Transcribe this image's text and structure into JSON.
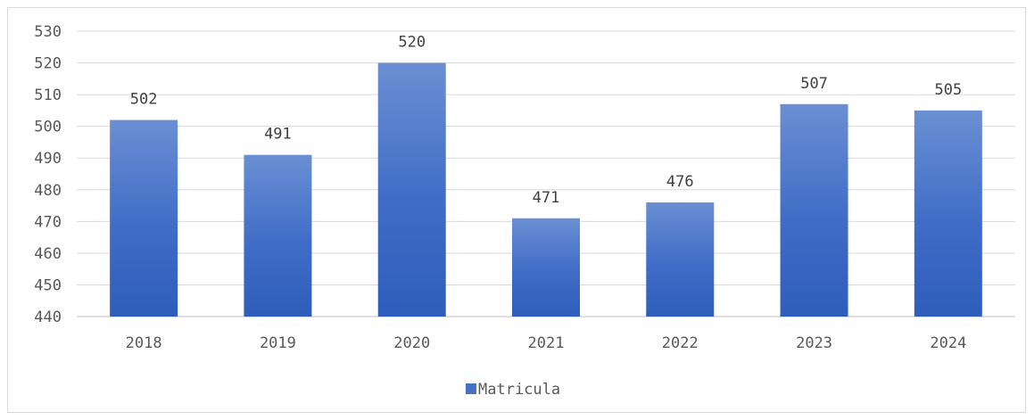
{
  "chart_data": {
    "type": "bar",
    "title": "",
    "xlabel": "",
    "ylabel": "",
    "categories": [
      "2018",
      "2019",
      "2020",
      "2021",
      "2022",
      "2023",
      "2024"
    ],
    "series": [
      {
        "name": "Matricula",
        "values": [
          502,
          491,
          520,
          471,
          476,
          507,
          505
        ],
        "color": "#4472c4"
      }
    ],
    "ylim": [
      440,
      530
    ],
    "yticks": [
      "440",
      "450",
      "460",
      "470",
      "480",
      "490",
      "500",
      "510",
      "520",
      "530"
    ],
    "data_labels": [
      "502",
      "491",
      "520",
      "471",
      "476",
      "507",
      "505"
    ],
    "grid": true,
    "legend_position": "bottom"
  }
}
